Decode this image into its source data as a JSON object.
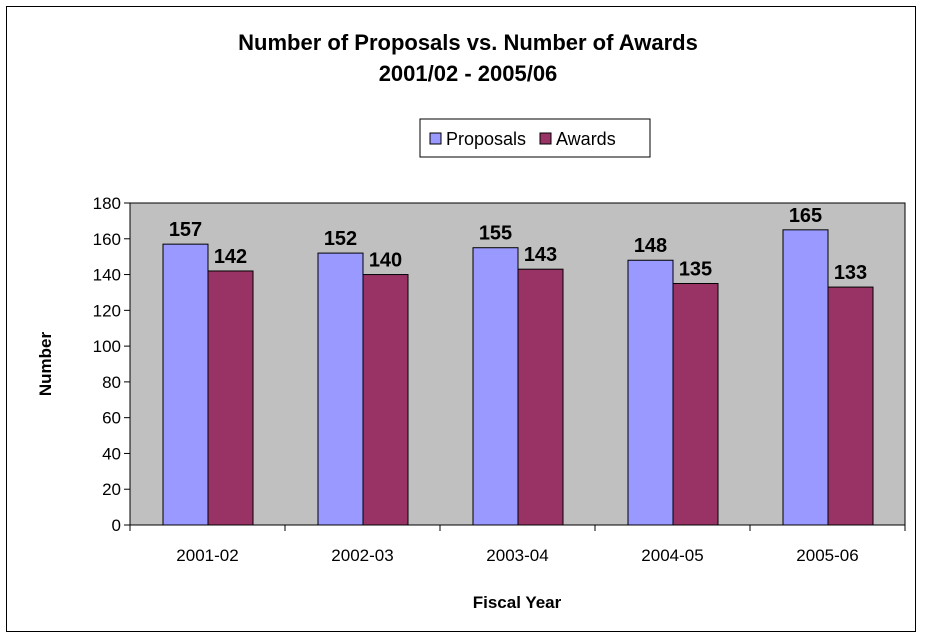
{
  "chart_data": {
    "type": "bar",
    "title": "Number of Proposals vs. Number of Awards",
    "subtitle": "2001/02 - 2005/06",
    "xlabel": "Fiscal Year",
    "ylabel": "Number",
    "categories": [
      "2001-02",
      "2002-03",
      "2003-04",
      "2004-05",
      "2005-06"
    ],
    "series": [
      {
        "name": "Proposals",
        "values": [
          157,
          152,
          155,
          148,
          165
        ],
        "color": "#9999FF"
      },
      {
        "name": "Awards",
        "values": [
          142,
          140,
          143,
          135,
          133
        ],
        "color": "#993366"
      }
    ],
    "ylim": [
      0,
      180
    ],
    "yticks": [
      0,
      20,
      40,
      60,
      80,
      100,
      120,
      140,
      160,
      180
    ],
    "grid": false,
    "plot_background": "#C0C0C0",
    "legend_position": "top-center",
    "data_labels": true
  }
}
